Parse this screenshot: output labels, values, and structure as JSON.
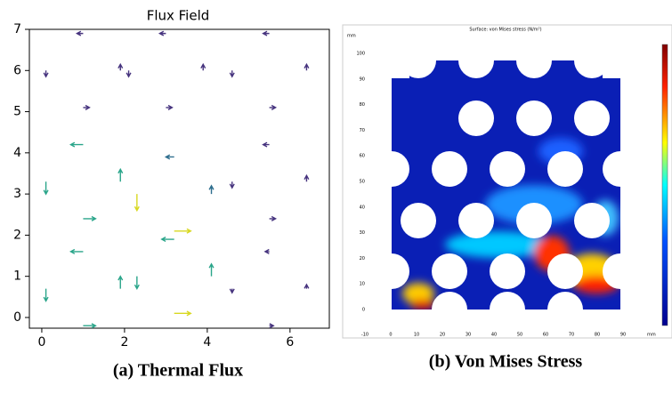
{
  "chart_data": [
    {
      "type": "quiver",
      "title": "Flux Field",
      "x": [
        1.9,
        1,
        0.1,
        1,
        3.9,
        3,
        2.1,
        3,
        6.4,
        5.5,
        4.6,
        5.5,
        1.9,
        1,
        0.1,
        1,
        4.1,
        3.2,
        2.3,
        3.2,
        6.4,
        5.5,
        4.6,
        5.5,
        1.9,
        1,
        0.1,
        1,
        4.1,
        3.2,
        2.3,
        3.2,
        6.4,
        5.5,
        4.6,
        5.5
      ],
      "y": [
        6,
        6.9,
        6,
        5.1,
        6,
        6.9,
        6,
        5.1,
        6,
        6.9,
        6,
        5.1,
        3.3,
        4.2,
        3.3,
        2.4,
        3,
        3.9,
        3,
        2.1,
        3.3,
        4.2,
        3.3,
        2.4,
        0.7,
        1.6,
        0.7,
        -0.2,
        1,
        1.9,
        1,
        0.1,
        0.7,
        1.6,
        0.7,
        -0.2
      ],
      "u": [
        0,
        -0.15,
        0,
        0.15,
        0,
        -0.15,
        0,
        0.15,
        0,
        -0.15,
        0,
        0.15,
        0,
        -0.3,
        0,
        0.3,
        0,
        -0.2,
        0,
        0.4,
        0,
        -0.15,
        0,
        0.15,
        0,
        -0.3,
        0,
        0.3,
        0,
        -0.3,
        0,
        0.4,
        0,
        -0.1,
        0,
        0.1
      ],
      "v": [
        0.15,
        0,
        -0.15,
        0,
        0.15,
        0,
        -0.15,
        0,
        0.15,
        0,
        -0.15,
        0,
        0.3,
        0,
        -0.3,
        0,
        0.2,
        0,
        -0.4,
        0,
        0.15,
        0,
        -0.15,
        0,
        0.3,
        0,
        -0.3,
        0,
        0.3,
        0,
        -0.3,
        0,
        0.1,
        0,
        -0.1,
        0
      ],
      "xlim": [
        -0.3,
        6.95
      ],
      "ylim": [
        -0.26,
        7
      ],
      "xticks": [
        0,
        2,
        4,
        6
      ],
      "yticks": [
        0,
        1,
        2,
        3,
        4,
        5,
        6,
        7
      ],
      "caption": "(a) Thermal Flux"
    },
    {
      "type": "heatmap-image",
      "title": "Surface: von Mises stress (N/m²)",
      "x_unit": "mm",
      "y_unit": "mm",
      "xlim": [
        -10,
        100
      ],
      "ylim": [
        -5,
        105
      ],
      "xticks": [
        -10,
        0,
        10,
        20,
        30,
        40,
        50,
        60,
        70,
        80,
        90
      ],
      "yticks": [
        0,
        10,
        20,
        30,
        40,
        50,
        60,
        70,
        80,
        90,
        100
      ],
      "caption": "(b) Von Mises Stress"
    }
  ]
}
